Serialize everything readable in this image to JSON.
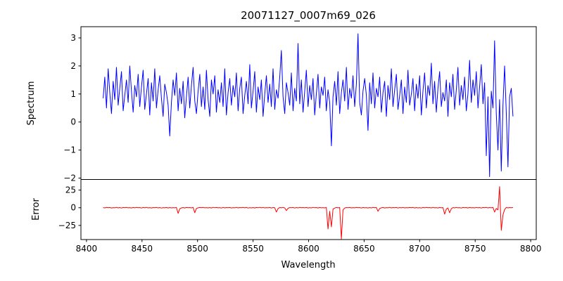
{
  "chart_data": {
    "type": "line",
    "title": "20071127_0007m69_026",
    "xlabel": "Wavelength",
    "axis_color": "#000000",
    "background": "#ffffff",
    "x_start": 8415,
    "x_step": 1.5,
    "xlim": [
      8395,
      8805
    ],
    "x_ticks": [
      8400,
      8450,
      8500,
      8550,
      8600,
      8650,
      8700,
      8750,
      8800
    ],
    "panels": [
      {
        "name": "spectrum",
        "ylabel": "Spectrum",
        "color": "#0000ff",
        "ylim": [
          -2.05,
          3.4
        ],
        "y_ticks": [
          3,
          2,
          1,
          0,
          -1,
          -2
        ],
        "values": [
          0.85,
          1.6,
          0.5,
          1.9,
          1.05,
          0.3,
          1.45,
          0.8,
          1.95,
          0.6,
          1.2,
          1.8,
          0.4,
          0.95,
          1.5,
          0.7,
          2.0,
          1.1,
          0.35,
          1.3,
          0.9,
          1.7,
          0.55,
          1.25,
          1.85,
          0.45,
          1.0,
          1.55,
          0.25,
          1.4,
          0.75,
          1.9,
          0.5,
          1.15,
          1.65,
          0.85,
          0.2,
          1.35,
          1.05,
          0.6,
          -0.5,
          0.7,
          1.5,
          0.95,
          1.75,
          0.4,
          1.2,
          0.65,
          1.45,
          0.15,
          0.9,
          1.6,
          0.5,
          1.3,
          1.95,
          0.75,
          0.3,
          1.1,
          1.7,
          0.55,
          1.25,
          0.45,
          1.85,
          0.8,
          0.2,
          1.5,
          1.0,
          1.65,
          0.35,
          1.15,
          0.7,
          1.4,
          0.55,
          1.9,
          0.25,
          1.05,
          1.55,
          0.6,
          1.3,
          0.9,
          1.75,
          0.4,
          1.2,
          1.6,
          0.3,
          0.95,
          1.45,
          0.65,
          2.05,
          0.5,
          1.1,
          1.8,
          0.35,
          1.25,
          0.8,
          1.5,
          0.2,
          1.0,
          1.65,
          0.7,
          1.35,
          0.55,
          1.9,
          0.45,
          1.15,
          0.85,
          1.6,
          2.55,
          0.9,
          0.3,
          1.4,
          1.05,
          0.6,
          1.75,
          0.4,
          1.2,
          0.75,
          2.8,
          0.65,
          1.5,
          0.35,
          1.1,
          1.85,
          0.55,
          1.3,
          0.8,
          1.55,
          0.25,
          1.0,
          1.7,
          0.5,
          1.25,
          0.95,
          1.6,
          0.4,
          1.15,
          0.7,
          -0.85,
          0.9,
          1.45,
          0.6,
          1.8,
          0.3,
          1.05,
          1.5,
          0.75,
          1.95,
          0.45,
          1.2,
          0.85,
          1.65,
          0.55,
          1.35,
          3.15,
          0.7,
          0.25,
          1.1,
          1.55,
          0.95,
          -0.3,
          1.4,
          0.65,
          1.75,
          0.5,
          1.2,
          0.9,
          1.6,
          0.35,
          1.05,
          1.45,
          0.2,
          1.3,
          0.8,
          1.9,
          0.55,
          1.15,
          1.7,
          0.45,
          0.95,
          1.5,
          0.3,
          1.25,
          0.7,
          1.85,
          0.6,
          1.0,
          1.55,
          0.4,
          1.35,
          0.85,
          1.65,
          0.25,
          1.1,
          1.75,
          0.5,
          1.3,
          0.95,
          2.1,
          0.65,
          1.45,
          0.35,
          1.2,
          1.8,
          0.55,
          1.05,
          0.75,
          1.5,
          0.2,
          1.4,
          0.9,
          1.7,
          0.45,
          1.15,
          1.95,
          0.6,
          1.3,
          0.8,
          1.6,
          0.4,
          1.0,
          2.2,
          0.7,
          1.5,
          0.95,
          1.8,
          0.5,
          1.25,
          2.05,
          0.65,
          1.4,
          -1.2,
          0.9,
          -1.95,
          1.1,
          0.5,
          2.9,
          0.3,
          -1.0,
          0.8,
          -1.75,
          0.6,
          2.0,
          0.35,
          -1.6,
          0.9,
          1.2,
          0.2
        ]
      },
      {
        "name": "error",
        "ylabel": "Error",
        "color": "#ff0000",
        "ylim": [
          -45,
          40
        ],
        "y_ticks": [
          25,
          0,
          -25
        ],
        "values": [
          0.2,
          -0.3,
          0.4,
          -0.1,
          0.3,
          -0.4,
          0.1,
          -0.2,
          0.5,
          -0.3,
          0.2,
          -0.5,
          0.3,
          -0.1,
          0.4,
          -0.2,
          0.1,
          -0.4,
          0.3,
          -0.2,
          0.4,
          -0.1,
          0.2,
          -0.5,
          0.3,
          -0.2,
          0.5,
          -0.3,
          0.1,
          -0.4,
          0.2,
          -0.1,
          0.4,
          -0.3,
          0.2,
          -0.5,
          0.1,
          -0.2,
          0.3,
          -0.4,
          0.2,
          -0.3,
          0.1,
          -0.2,
          0.4,
          -8.0,
          -1.5,
          -0.3,
          0.2,
          -0.4,
          0.3,
          -0.1,
          0.2,
          -0.3,
          0.5,
          -7.0,
          -1.0,
          -0.2,
          0.3,
          -0.1,
          0.4,
          -0.2,
          0.1,
          -0.3,
          0.2,
          -0.4,
          0.5,
          -0.1,
          0.3,
          -0.2,
          0.1,
          -0.5,
          0.4,
          -0.3,
          0.2,
          -0.1,
          0.3,
          -0.4,
          0.1,
          -0.2,
          0.5,
          -0.3,
          0.2,
          -0.1,
          0.4,
          -0.2,
          0.3,
          -0.5,
          0.1,
          -0.3,
          0.2,
          -0.4,
          0.3,
          -0.1,
          0.5,
          -0.2,
          0.4,
          -0.3,
          0.1,
          -0.2,
          0.3,
          -0.4,
          0.2,
          -0.1,
          -6.0,
          -1.2,
          0.3,
          -0.2,
          0.4,
          -0.3,
          -4.0,
          -0.8,
          0.2,
          -0.1,
          0.3,
          -0.5,
          0.2,
          -0.3,
          0.4,
          -0.1,
          0.2,
          -0.2,
          0.3,
          -0.4,
          0.1,
          -0.3,
          0.5,
          -0.1,
          0.2,
          -0.4,
          0.3,
          -0.2,
          0.1,
          -0.3,
          0.4,
          -30.0,
          -5.0,
          -27.0,
          -2.0,
          -0.5,
          0.3,
          -0.2,
          0.2,
          -44.0,
          -3.0,
          -0.4,
          0.2,
          -0.1,
          0.3,
          -0.3,
          0.1,
          -0.2,
          0.4,
          -0.1,
          0.2,
          -0.5,
          0.3,
          -0.2,
          0.1,
          -0.4,
          0.2,
          -0.3,
          0.4,
          -0.1,
          0.3,
          -5.0,
          -1.0,
          -0.2,
          0.3,
          -0.4,
          0.1,
          -0.2,
          0.5,
          -0.3,
          0.2,
          -0.1,
          0.3,
          -0.5,
          0.2,
          -0.2,
          0.4,
          -0.3,
          0.1,
          -0.2,
          0.3,
          -0.1,
          0.4,
          -0.4,
          0.2,
          -0.3,
          0.1,
          -0.5,
          0.3,
          -0.2,
          0.4,
          -0.1,
          0.2,
          -0.3,
          0.5,
          -0.2,
          0.1,
          -0.4,
          0.3,
          -0.2,
          0.2,
          -9.0,
          -2.0,
          -0.3,
          -7.0,
          -1.5,
          0.2,
          -0.3,
          0.4,
          -0.2,
          0.1,
          -0.5,
          0.3,
          -0.1,
          0.2,
          -0.4,
          0.3,
          -0.2,
          0.1,
          -0.3,
          0.4,
          -0.2,
          0.2,
          -0.5,
          0.3,
          -0.1,
          0.4,
          -0.3,
          0.2,
          -0.2,
          0.5,
          -6.0,
          -1.0,
          -3.0,
          30.0,
          -32.0,
          -10.0,
          -2.5,
          0.4,
          -0.3,
          0.2,
          -0.1,
          0.3
        ]
      }
    ]
  }
}
